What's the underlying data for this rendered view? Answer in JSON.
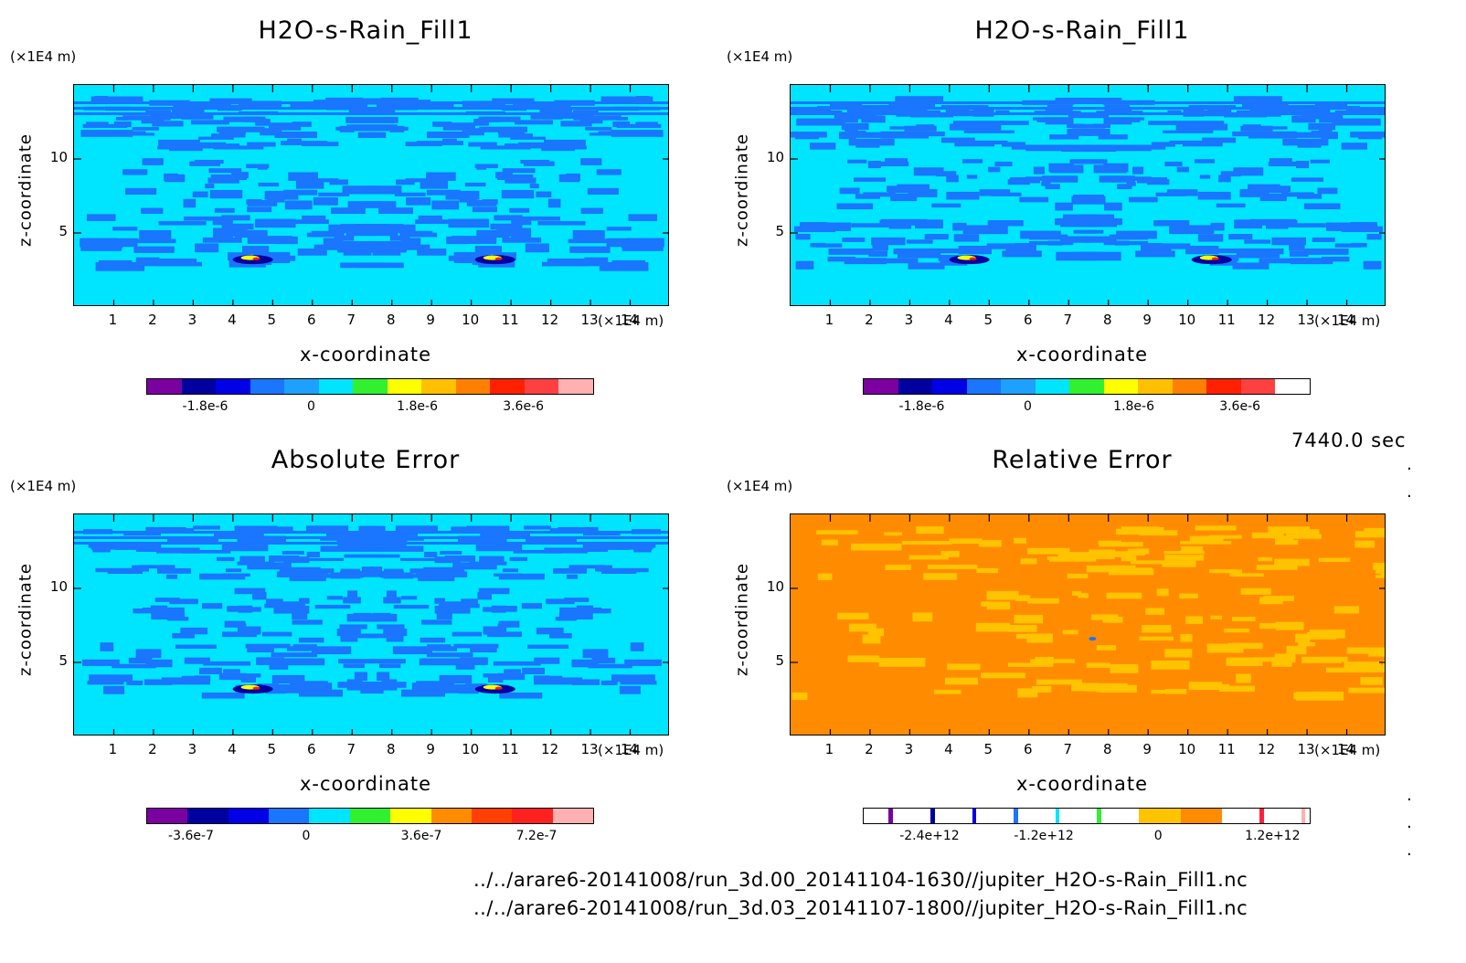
{
  "time_label": "7440.0 sec",
  "files": [
    "../../arare6-20141008/run_3d.00_20141104-1630//jupiter_H2O-s-Rain_Fill1.nc",
    "../../arare6-20141008/run_3d.03_20141107-1800//jupiter_H2O-s-Rain_Fill1.nc"
  ],
  "colors": {
    "background": "#00e5ff",
    "blue_blob": "#1a75ff",
    "relative_bg": "#ff8c00",
    "relative_blob": "#ffc300"
  },
  "chart_data": [
    {
      "type": "heatmap",
      "title": "H2O-s-Rain_Fill1",
      "xlabel": "x-coordinate",
      "ylabel": "z-coordinate",
      "xunit": "(×1E4 m)",
      "zunit": "(×1E4 m)",
      "xlim": [
        0,
        15
      ],
      "ylim": [
        0,
        15
      ],
      "x_ticks": [
        "1",
        "2",
        "3",
        "4",
        "5",
        "6",
        "7",
        "8",
        "9",
        "10",
        "11",
        "12",
        "13",
        "14"
      ],
      "y_ticks": [
        "5",
        "10"
      ],
      "colorbar": {
        "colors": [
          "#7a00a0",
          "#0000a0",
          "#0000e6",
          "#1a75ff",
          "#1ea0ff",
          "#00e5ff",
          "#30f030",
          "#ffff00",
          "#ffc000",
          "#ff8000",
          "#ff2000",
          "#ff4040",
          "#ffb0b0"
        ],
        "tick_labels": [
          "-1.8e-6",
          "0",
          "1.8e-6",
          "3.6e-6"
        ],
        "tick_values": [
          -1.8e-06,
          0,
          1.8e-06,
          3.6e-06
        ],
        "range": [
          -2.8e-06,
          4.8e-06
        ]
      },
      "background_color": "#00e5ff"
    },
    {
      "type": "heatmap",
      "title": "H2O-s-Rain_Fill1",
      "xlabel": "x-coordinate",
      "ylabel": "z-coordinate",
      "xunit": "(×1E4 m)",
      "zunit": "(×1E4 m)",
      "xlim": [
        0,
        15
      ],
      "ylim": [
        0,
        15
      ],
      "x_ticks": [
        "1",
        "2",
        "3",
        "4",
        "5",
        "6",
        "7",
        "8",
        "9",
        "10",
        "11",
        "12",
        "13",
        "14"
      ],
      "y_ticks": [
        "5",
        "10"
      ],
      "colorbar": {
        "colors": [
          "#7a00a0",
          "#0000a0",
          "#0000e6",
          "#1a75ff",
          "#1ea0ff",
          "#00e5ff",
          "#30f030",
          "#ffff00",
          "#ffc000",
          "#ff8000",
          "#ff2000",
          "#ff4040",
          "#ffffff"
        ],
        "tick_labels": [
          "-1.8e-6",
          "0",
          "1.8e-6",
          "3.6e-6"
        ],
        "tick_values": [
          -1.8e-06,
          0,
          1.8e-06,
          3.6e-06
        ],
        "range": [
          -2.8e-06,
          4.8e-06
        ]
      },
      "background_color": "#00e5ff"
    },
    {
      "type": "heatmap",
      "title": "Absolute Error",
      "xlabel": "x-coordinate",
      "ylabel": "z-coordinate",
      "xunit": "(×1E4 m)",
      "zunit": "(×1E4 m)",
      "xlim": [
        0,
        15
      ],
      "ylim": [
        0,
        15
      ],
      "x_ticks": [
        "1",
        "2",
        "3",
        "4",
        "5",
        "6",
        "7",
        "8",
        "9",
        "10",
        "11",
        "12",
        "13",
        "14"
      ],
      "y_ticks": [
        "5",
        "10"
      ],
      "colorbar": {
        "colors": [
          "#7a00a0",
          "#0000a0",
          "#0000e6",
          "#1a75ff",
          "#00e5ff",
          "#30f030",
          "#ffff00",
          "#ff8c00",
          "#ff4000",
          "#ff2020",
          "#ffb0b0"
        ],
        "tick_labels": [
          "-3.6e-7",
          "0",
          "3.6e-7",
          "7.2e-7"
        ],
        "tick_values": [
          -3.6e-07,
          0,
          3.6e-07,
          7.2e-07
        ],
        "range": [
          -5e-07,
          9e-07
        ]
      },
      "background_color": "#00e5ff"
    },
    {
      "type": "heatmap",
      "title": "Relative Error",
      "xlabel": "x-coordinate",
      "ylabel": "z-coordinate",
      "xunit": "(×1E4 m)",
      "zunit": "(×1E4 m)",
      "xlim": [
        0,
        15
      ],
      "ylim": [
        0,
        15
      ],
      "x_ticks": [
        "1",
        "2",
        "3",
        "4",
        "5",
        "6",
        "7",
        "8",
        "9",
        "10",
        "11",
        "12",
        "13",
        "14"
      ],
      "y_ticks": [
        "5",
        "10"
      ],
      "colorbar": {
        "segments": [
          {
            "color": "#ffffff",
            "weight": 6
          },
          {
            "color": "#7a00a0",
            "weight": 1
          },
          {
            "color": "#ffffff",
            "weight": 9
          },
          {
            "color": "#0000a0",
            "weight": 1
          },
          {
            "color": "#ffffff",
            "weight": 9
          },
          {
            "color": "#0000e6",
            "weight": 1
          },
          {
            "color": "#ffffff",
            "weight": 9
          },
          {
            "color": "#1a75ff",
            "weight": 1
          },
          {
            "color": "#ffffff",
            "weight": 9
          },
          {
            "color": "#00e5ff",
            "weight": 1
          },
          {
            "color": "#ffffff",
            "weight": 9
          },
          {
            "color": "#30f030",
            "weight": 1
          },
          {
            "color": "#ffffff",
            "weight": 9
          },
          {
            "color": "#ffc300",
            "weight": 10
          },
          {
            "color": "#ff8c00",
            "weight": 10
          },
          {
            "color": "#ffffff",
            "weight": 9
          },
          {
            "color": "#ff2040",
            "weight": 1
          },
          {
            "color": "#ffffff",
            "weight": 9
          },
          {
            "color": "#ffb0b0",
            "weight": 1
          },
          {
            "color": "#ffffff",
            "weight": 1
          }
        ],
        "tick_labels": [
          "-2.4e+12",
          "-1.2e+12",
          "0",
          "1.2e+12"
        ],
        "tick_values": [
          -2400000000000.0,
          -1200000000000.0,
          0,
          1200000000000.0
        ],
        "range": [
          -3100000000000.0,
          1600000000000.0
        ]
      },
      "background_color": "#ff8c00"
    }
  ]
}
